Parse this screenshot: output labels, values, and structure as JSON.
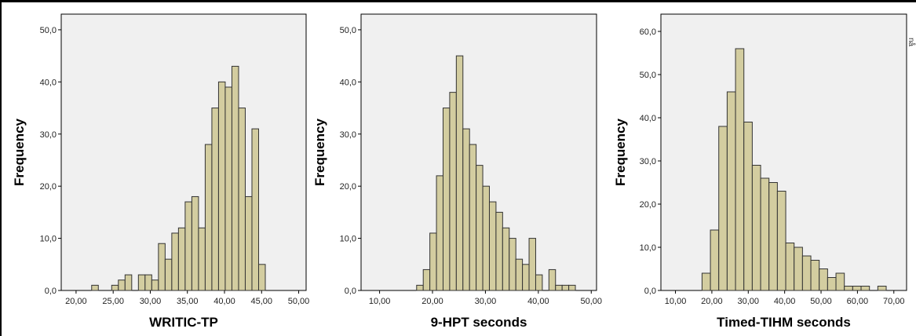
{
  "colors": {
    "bar_fill": "#d3cda0",
    "bar_stroke": "#333333",
    "plot_bg": "#f0f0f0",
    "axis": "#000000"
  },
  "cutoff_text": "nå",
  "chart_data": [
    {
      "type": "bar",
      "xlabel": "WRITIC-TP",
      "ylabel": "Frequency",
      "xlim": [
        18.0,
        51.0
      ],
      "ylim": [
        0,
        53
      ],
      "xticks": [
        20,
        25,
        30,
        35,
        40,
        45,
        50
      ],
      "xtick_labels": [
        "20,00",
        "25,00",
        "30,00",
        "35,00",
        "40,00",
        "45,00",
        "50,00"
      ],
      "yticks": [
        0,
        10,
        20,
        30,
        40,
        50
      ],
      "ytick_labels": [
        "0,0",
        "10,0",
        "20,0",
        "30,0",
        "40,0",
        "50,0"
      ],
      "bin_width": 0.9,
      "bin_start": 22.1,
      "values": [
        1,
        0,
        0,
        1,
        2,
        3,
        0,
        3,
        3,
        2,
        9,
        6,
        11,
        12,
        17,
        18,
        12,
        28,
        35,
        40,
        39,
        43,
        35,
        18,
        31,
        5
      ]
    },
    {
      "type": "bar",
      "xlabel": "9-HPT seconds",
      "ylabel": "Frequency",
      "xlim": [
        6.5,
        51.0
      ],
      "ylim": [
        0,
        53
      ],
      "xticks": [
        10,
        20,
        30,
        40,
        50
      ],
      "xtick_labels": [
        "10,00",
        "20,00",
        "30,00",
        "40,00",
        "50,00"
      ],
      "yticks": [
        0,
        10,
        20,
        30,
        40,
        50
      ],
      "ytick_labels": [
        "0,0",
        "10,0",
        "20,0",
        "30,0",
        "40,0",
        "50,0"
      ],
      "bin_width": 1.25,
      "bin_start": 17.0,
      "values": [
        1,
        4,
        11,
        22,
        35,
        38,
        45,
        31,
        28,
        24,
        20,
        17,
        15,
        12,
        10,
        6,
        5,
        10,
        3,
        0,
        4,
        1,
        1,
        1
      ]
    },
    {
      "type": "bar",
      "xlabel": "Timed-TIHM seconds",
      "ylabel": "Frequency",
      "xlim": [
        6.0,
        73.5
      ],
      "ylim": [
        0,
        64
      ],
      "xticks": [
        10,
        20,
        30,
        40,
        50,
        60,
        70
      ],
      "xtick_labels": [
        "10,00",
        "20,00",
        "30,00",
        "40,00",
        "50,00",
        "60,00",
        "70,00"
      ],
      "yticks": [
        0,
        10,
        20,
        30,
        40,
        50,
        60
      ],
      "ytick_labels": [
        "0,0",
        "10,0",
        "20,0",
        "30,0",
        "40,0",
        "50,0",
        "60,0"
      ],
      "bin_width": 2.3,
      "bin_start": 17.3,
      "values": [
        4,
        14,
        38,
        46,
        56,
        39,
        29,
        26,
        25,
        23,
        11,
        10,
        8,
        7,
        5,
        3,
        4,
        1,
        1,
        1,
        0,
        1
      ]
    }
  ]
}
